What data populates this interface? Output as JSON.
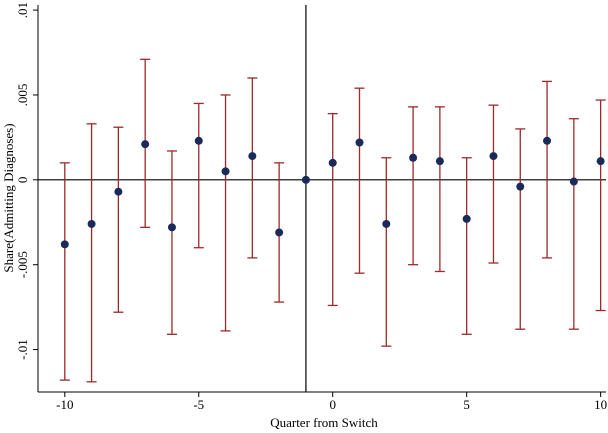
{
  "chart_data": {
    "type": "errorbar",
    "x_label": "Quarter from Switch",
    "y_label": "Share(Admitting Diagnoses)",
    "x": [
      -10,
      -9,
      -8,
      -7,
      -6,
      -5,
      -4,
      -3,
      -2,
      -1,
      0,
      1,
      2,
      3,
      4,
      5,
      6,
      7,
      8,
      9,
      10
    ],
    "values": [
      -0.0038,
      -0.0026,
      -0.0007,
      0.0021,
      -0.0028,
      0.0023,
      0.0005,
      0.0014,
      -0.0031,
      0,
      0.001,
      0.0022,
      -0.0026,
      0.0013,
      0.0011,
      -0.0023,
      0.0014,
      -0.0004,
      0.0023,
      -0.0001,
      0.0011
    ],
    "lower": [
      -0.0118,
      -0.0119,
      -0.0078,
      -0.0028,
      -0.0091,
      -0.004,
      -0.0089,
      -0.0046,
      -0.0072,
      null,
      -0.0074,
      -0.0055,
      -0.0098,
      -0.005,
      -0.0054,
      -0.0091,
      -0.0049,
      -0.0088,
      -0.0046,
      -0.0088,
      -0.0077
    ],
    "upper": [
      0.001,
      0.0033,
      0.0031,
      0.0071,
      0.0017,
      0.0045,
      0.005,
      0.006,
      0.001,
      null,
      0.0039,
      0.0054,
      0.0013,
      0.0043,
      0.0043,
      0.0013,
      0.0044,
      0.003,
      0.0058,
      0.0036,
      0.0047
    ],
    "point_color": "#1a2b5a",
    "bar_color": "#9b2a2a",
    "xlim": [
      -11,
      10.2
    ],
    "xticks": [
      -10,
      -5,
      0,
      5,
      10
    ],
    "ylim": [
      -0.0125,
      0.0103
    ],
    "yticks": [
      {
        "value": -0.01,
        "label": "-.01"
      },
      {
        "value": -0.005,
        "label": "-.005"
      },
      {
        "value": 0,
        "label": "0"
      },
      {
        "value": 0.005,
        "label": ".005"
      },
      {
        "value": 0.01,
        "label": ".01"
      }
    ],
    "vline": -1,
    "hline": 0
  }
}
